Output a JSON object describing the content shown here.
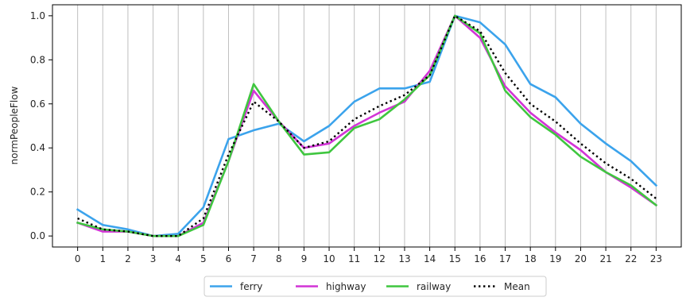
{
  "chart_data": {
    "type": "line",
    "title": "",
    "xlabel": "",
    "ylabel": "normPeopleFlow",
    "x": [
      0,
      1,
      2,
      3,
      4,
      5,
      6,
      7,
      8,
      9,
      10,
      11,
      12,
      13,
      14,
      15,
      16,
      17,
      18,
      19,
      20,
      21,
      22,
      23
    ],
    "xticks": [
      "0",
      "1",
      "2",
      "3",
      "4",
      "5",
      "6",
      "7",
      "8",
      "9",
      "10",
      "11",
      "12",
      "13",
      "14",
      "15",
      "16",
      "17",
      "18",
      "19",
      "20",
      "21",
      "22",
      "23"
    ],
    "yticks": [
      "0.0",
      "0.2",
      "0.4",
      "0.6",
      "0.8",
      "1.0"
    ],
    "xlim": [
      -1,
      24
    ],
    "ylim": [
      -0.05,
      1.05
    ],
    "grid": "vertical",
    "legend_position": "bottom-center",
    "series": [
      {
        "name": "ferry",
        "color": "#3ba3ec",
        "style": "solid",
        "values": [
          0.12,
          0.05,
          0.03,
          0.0,
          0.01,
          0.13,
          0.44,
          0.48,
          0.51,
          0.43,
          0.5,
          0.61,
          0.67,
          0.67,
          0.7,
          1.0,
          0.97,
          0.87,
          0.69,
          0.63,
          0.51,
          0.42,
          0.34,
          0.23
        ]
      },
      {
        "name": "highway",
        "color": "#d234d6",
        "style": "solid",
        "values": [
          0.06,
          0.02,
          0.02,
          0.0,
          0.0,
          0.06,
          0.34,
          0.66,
          0.52,
          0.4,
          0.42,
          0.5,
          0.56,
          0.61,
          0.75,
          1.0,
          0.9,
          0.68,
          0.56,
          0.47,
          0.39,
          0.29,
          0.22,
          0.14
        ]
      },
      {
        "name": "railway",
        "color": "#3fc63f",
        "style": "solid",
        "values": [
          0.06,
          0.03,
          0.02,
          0.0,
          0.0,
          0.05,
          0.34,
          0.69,
          0.52,
          0.37,
          0.38,
          0.49,
          0.53,
          0.62,
          0.73,
          1.0,
          0.92,
          0.66,
          0.54,
          0.46,
          0.36,
          0.29,
          0.23,
          0.14
        ]
      },
      {
        "name": "Mean",
        "color": "#000000",
        "style": "dotted",
        "values": [
          0.08,
          0.03,
          0.02,
          0.0,
          0.0,
          0.08,
          0.37,
          0.61,
          0.52,
          0.4,
          0.43,
          0.53,
          0.59,
          0.64,
          0.73,
          1.0,
          0.93,
          0.74,
          0.6,
          0.52,
          0.42,
          0.33,
          0.26,
          0.17
        ]
      }
    ]
  }
}
